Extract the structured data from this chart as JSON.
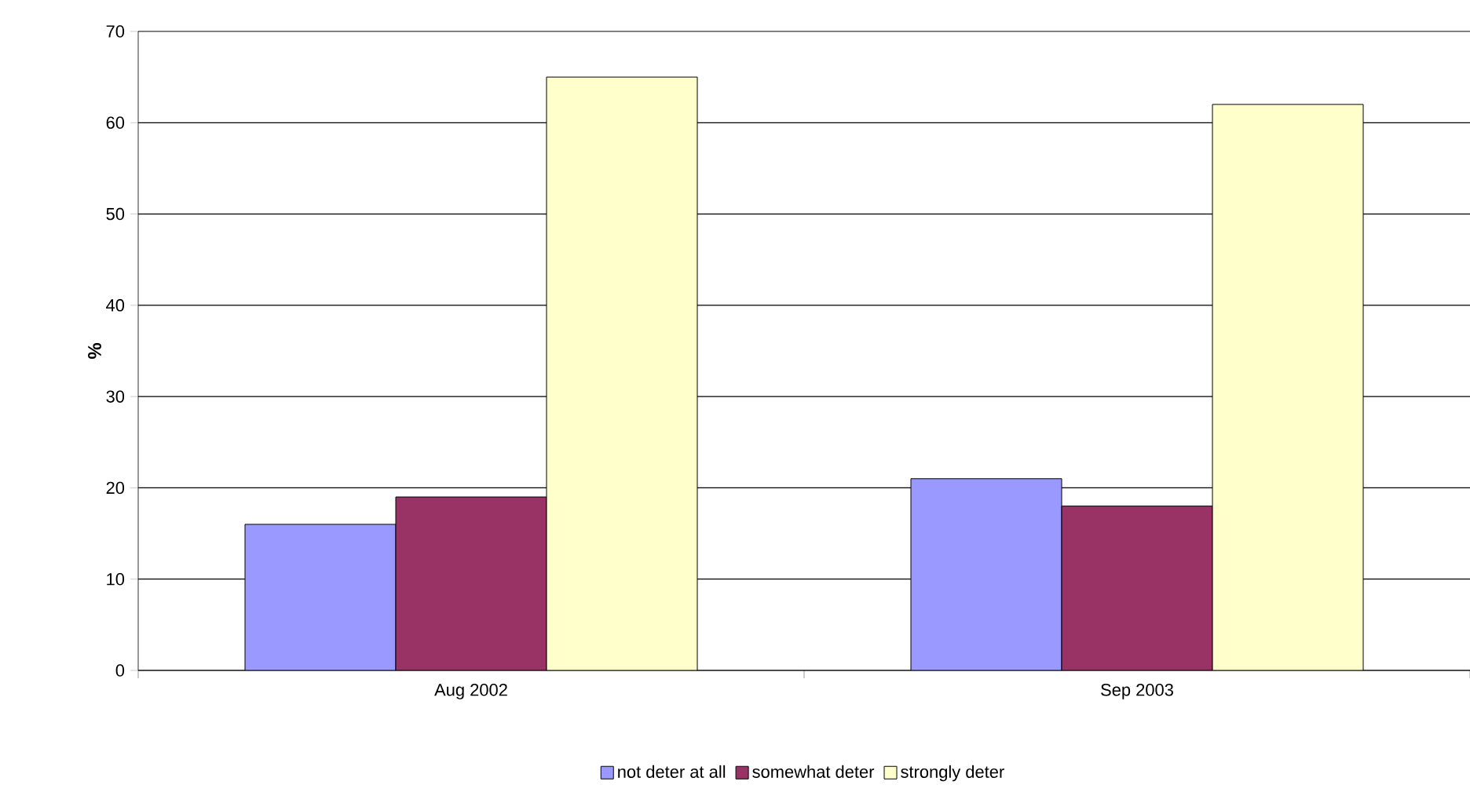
{
  "chart_data": {
    "type": "bar",
    "ylabel": "%",
    "categories": [
      "Aug 2002",
      "Sep 2003"
    ],
    "series": [
      {
        "name": "not deter at all",
        "color": "#9999ff",
        "values": [
          16,
          21
        ]
      },
      {
        "name": "somewhat deter",
        "color": "#993366",
        "values": [
          19,
          18
        ]
      },
      {
        "name": "strongly deter",
        "color": "#ffffcc",
        "values": [
          65,
          62
        ]
      }
    ],
    "ylim": [
      0,
      70
    ],
    "yticks": [
      0,
      10,
      20,
      30,
      40,
      50,
      60,
      70
    ],
    "grid": "y",
    "legend": "bottom"
  }
}
